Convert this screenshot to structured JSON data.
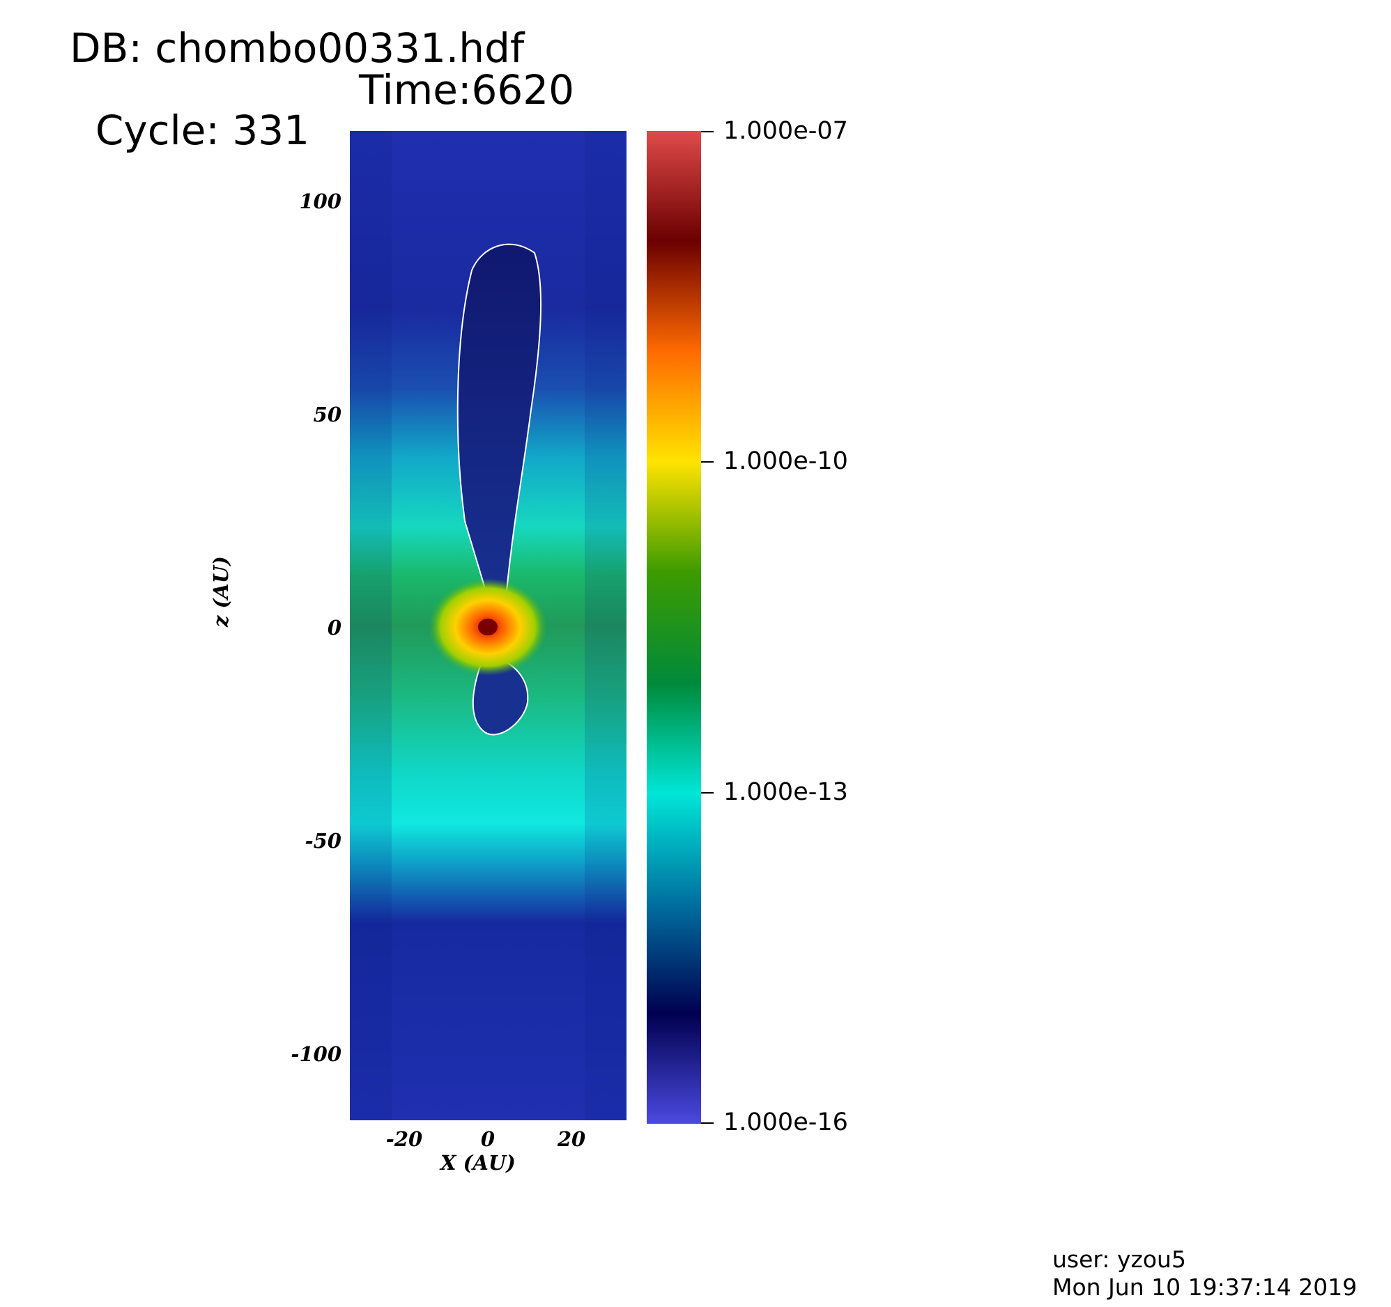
{
  "header": {
    "db": "DB: chombo00331.hdf",
    "cycle": "Cycle: 331",
    "time": "Time:6620"
  },
  "plot": {
    "x_axis_title": "X (AU)",
    "y_axis_title": "z (AU)",
    "x_ticks": [
      "-20",
      "0",
      "20"
    ],
    "y_ticks": [
      "100",
      "50",
      "0",
      "-50",
      "-100"
    ],
    "x_range": [
      -33,
      33
    ],
    "y_range": [
      -116,
      116
    ]
  },
  "colorbar": {
    "labels": [
      "1.000e-07",
      "1.000e-10",
      "1.000e-13",
      "1.000e-16"
    ],
    "colors": [
      "#e04a4a",
      "#6b0000",
      "#ff6a00",
      "#ffe300",
      "#3d9b00",
      "#008a3a",
      "#00e6d8",
      "#0070a0",
      "#000050",
      "#4a4ae0"
    ]
  },
  "footer": {
    "user": "user: yzou5",
    "timestamp": "Mon Jun 10 19:37:14 2019"
  }
}
